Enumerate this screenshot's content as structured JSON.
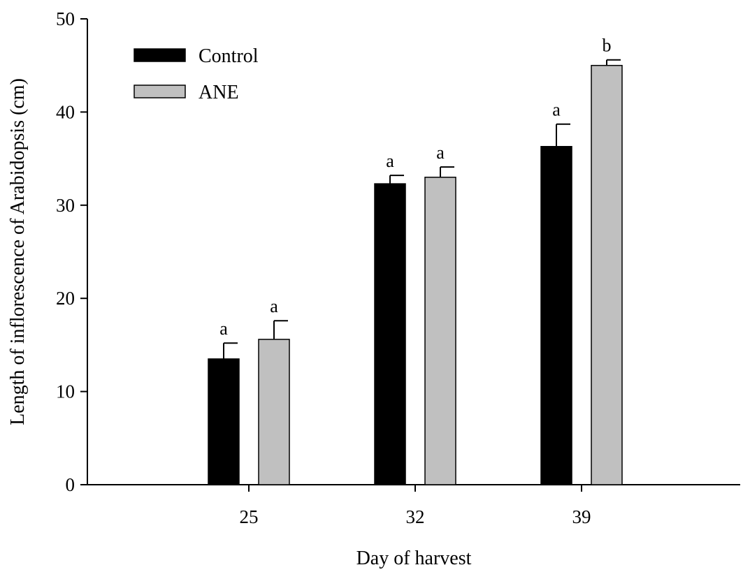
{
  "chart_data": {
    "type": "bar",
    "title": "",
    "xlabel": "Day of harvest",
    "ylabel": "Length of inflorescence of Arabidopsis (cm)",
    "categories": [
      "25",
      "32",
      "39"
    ],
    "ylim": [
      0,
      50
    ],
    "yticks": [
      0,
      10,
      20,
      30,
      40,
      50
    ],
    "grid": false,
    "legend_position": "top-left",
    "series": [
      {
        "name": "Control",
        "color": "#000000",
        "values": [
          13.5,
          32.3,
          36.3
        ],
        "errors": [
          1.7,
          0.9,
          2.4
        ],
        "significance": [
          "a",
          "a",
          "a"
        ]
      },
      {
        "name": "ANE",
        "color": "#c0c0c0",
        "values": [
          15.6,
          33.0,
          45.0
        ],
        "errors": [
          2.0,
          1.1,
          0.6
        ],
        "significance": [
          "a",
          "a",
          "b"
        ]
      }
    ]
  }
}
